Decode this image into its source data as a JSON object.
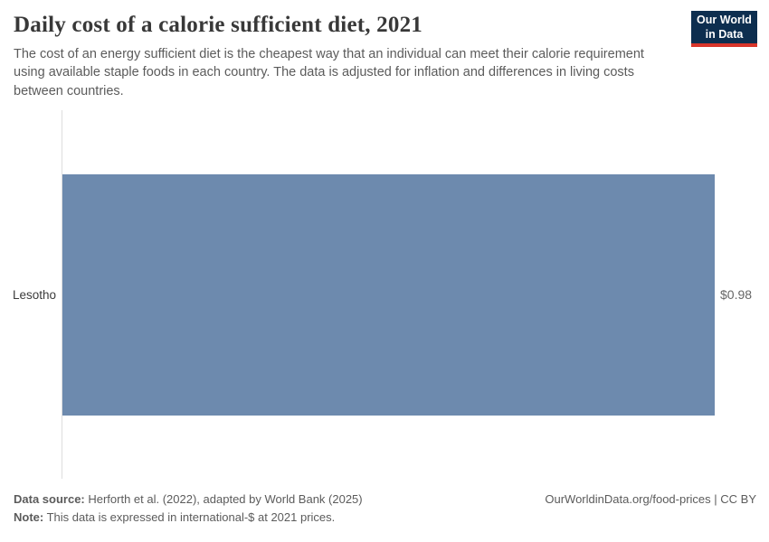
{
  "header": {
    "title": "Daily cost of a calorie sufficient diet, 2021",
    "subtitle": "The cost of an energy sufficient diet is the cheapest way that an individual can meet their calorie requirement using available staple foods in each country. The data is adjusted for inflation and differences in living costs between countries.",
    "logo": {
      "line1": "Our World",
      "line2": "in Data"
    }
  },
  "chart_data": {
    "type": "bar",
    "orientation": "horizontal",
    "title": "Daily cost of a calorie sufficient diet, 2021",
    "categories": [
      "Lesotho"
    ],
    "values": [
      0.98
    ],
    "value_labels": [
      "$0.98"
    ],
    "unit": "international-$",
    "xlabel": "",
    "ylabel": "",
    "xlim": [
      0,
      0.98
    ],
    "grid": false,
    "legend": "none",
    "bar_color": "#6d8aae",
    "axis_line_color": "#dedede"
  },
  "footer": {
    "data_source_label": "Data source:",
    "data_source_text": " Herforth et al. (2022), adapted by World Bank (2025)",
    "note_label": "Note:",
    "note_text": " This data is expressed in international-$ at 2021 prices.",
    "right_text": "OurWorldinData.org/food-prices | CC BY"
  },
  "colors": {
    "background": "#ffffff",
    "title": "#383838",
    "subtitle": "#5b5b5b",
    "bar": "#6d8aae",
    "logo_navy": "#0d2e4f",
    "logo_red": "#d8352a"
  }
}
